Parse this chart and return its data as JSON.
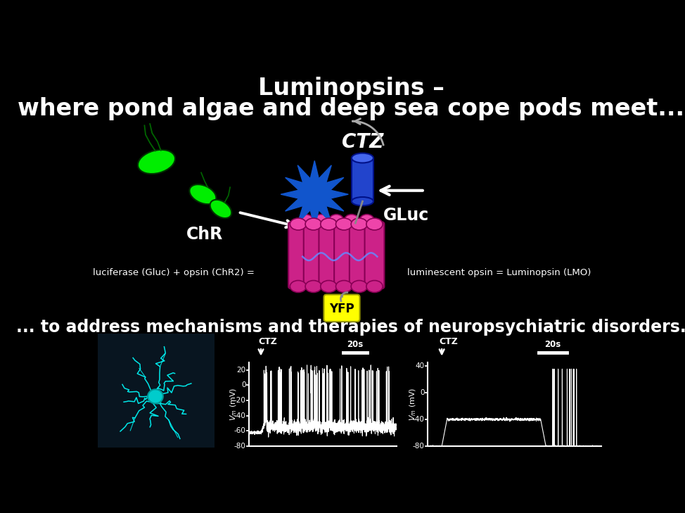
{
  "bg_color": "#000000",
  "title_line1": "Luminopsins –",
  "title_line2": "where pond algae and deep sea cope pods meet...",
  "subtitle": "... to address mechanisms and therapies of neuropsychiatric disorders.",
  "label_ChR": "ChR",
  "label_GLuc": "GLuc",
  "label_CTZ": "CTZ",
  "label_YFP": "YFP",
  "equation_left": "luciferase (Gluc) + opsin (ChR2) =",
  "equation_right": "luminescent opsin = Luminopsin (LMO)",
  "opsin_color": "#CC2288",
  "opsin_light": "#EE44AA",
  "gluc_color": "#2244CC",
  "gluc_top": "#4466EE",
  "yfp_color": "#FFFF00",
  "flash_color": "#1155CC",
  "text_color": "#FFFFFF",
  "trace_color": "#FFFFFF",
  "axes_color": "#FFFFFF",
  "neuron_color": "#00FFFF",
  "neuron_bg": "#081520",
  "trace_bg": "#000000"
}
